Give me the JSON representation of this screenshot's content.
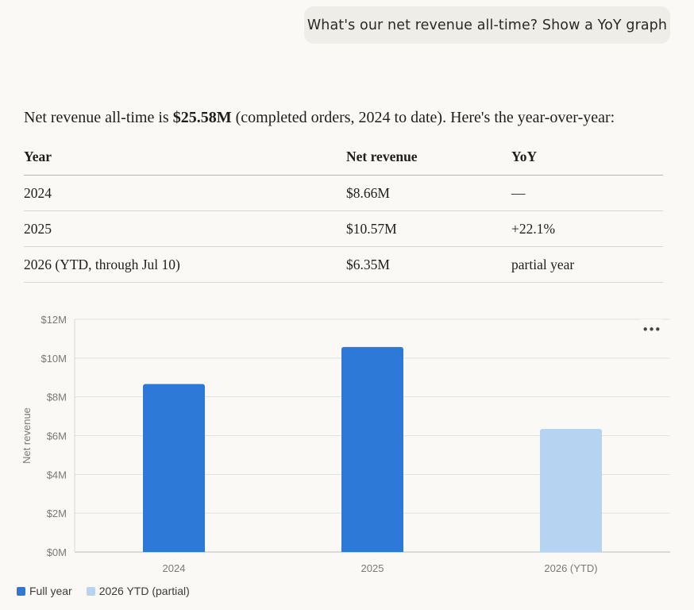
{
  "user_message": "What's our net revenue all-time? Show a YoY graph",
  "answer": {
    "prefix": "Net revenue all-time is ",
    "total": "$25.58M",
    "suffix": " (completed orders, 2024 to date). Here's the year-over-year:"
  },
  "table": {
    "headers": [
      "Year",
      "Net revenue",
      "YoY"
    ],
    "rows": [
      [
        "2024",
        "$8.66M",
        "—"
      ],
      [
        "2025",
        "$10.57M",
        "+22.1%"
      ],
      [
        "2026 (YTD, through Jul 10)",
        "$6.35M",
        "partial year"
      ]
    ]
  },
  "chart_menu_icon": "more-horizontal-icon",
  "chart_data": {
    "type": "bar",
    "categories": [
      "2024",
      "2025",
      "2026 (YTD)"
    ],
    "values": [
      8.66,
      10.57,
      6.35
    ],
    "bar_colors": [
      "#2c79d8",
      "#2c79d8",
      "#b6d4f2"
    ],
    "ylabel": "Net revenue",
    "xlabel": "",
    "ylim": [
      0,
      12
    ],
    "yticks": [
      0,
      2,
      4,
      6,
      8,
      10,
      12
    ],
    "ytick_labels": [
      "$0M",
      "$2M",
      "$4M",
      "$6M",
      "$8M",
      "$10M",
      "$12M"
    ],
    "grid": true,
    "legend_position": "bottom-left",
    "legend": [
      {
        "label": "Full year",
        "color": "#2c79d8"
      },
      {
        "label": "2026 YTD (partial)",
        "color": "#b6d4f2"
      }
    ]
  }
}
